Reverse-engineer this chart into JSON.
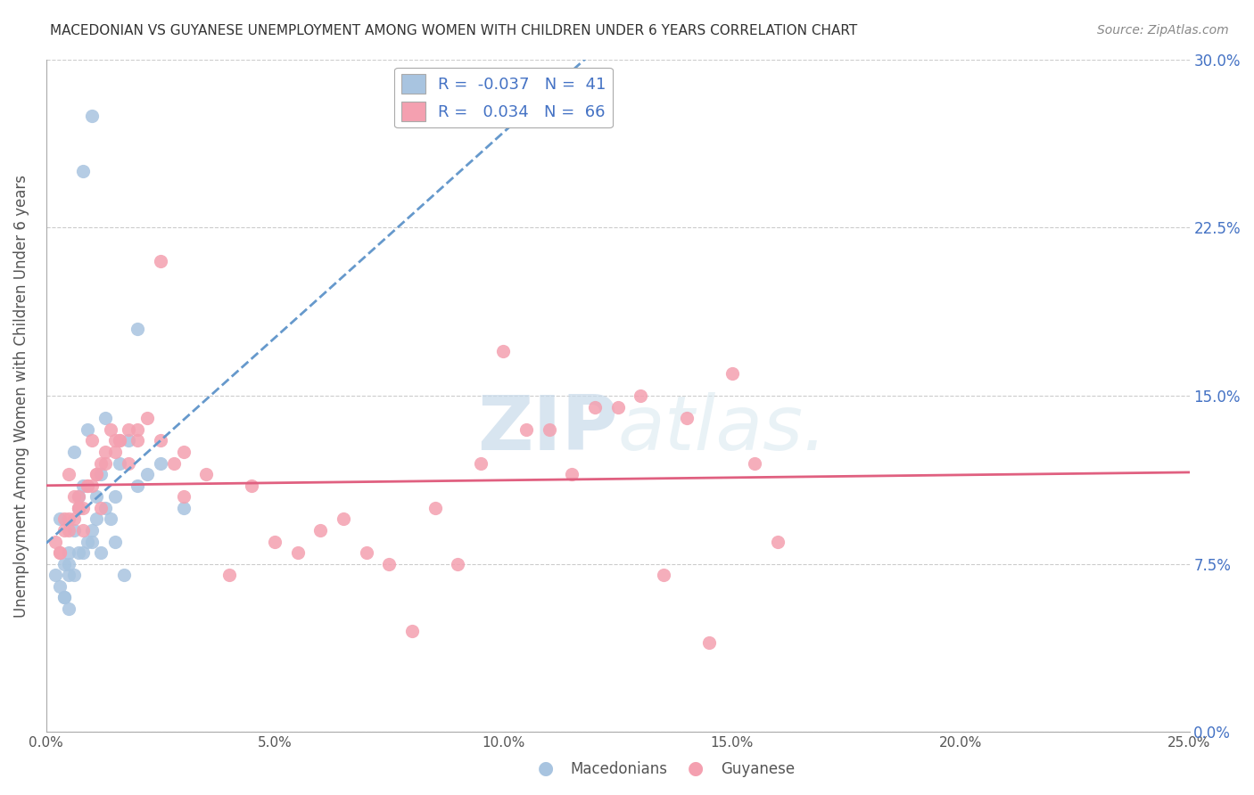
{
  "title": "MACEDONIAN VS GUYANESE UNEMPLOYMENT AMONG WOMEN WITH CHILDREN UNDER 6 YEARS CORRELATION CHART",
  "source": "Source: ZipAtlas.com",
  "ylabel": "Unemployment Among Women with Children Under 6 years",
  "xlabel_vals": [
    0.0,
    5.0,
    10.0,
    15.0,
    20.0,
    25.0
  ],
  "ylabel_vals": [
    0.0,
    7.5,
    15.0,
    22.5,
    30.0
  ],
  "xlim": [
    0,
    25
  ],
  "ylim": [
    0,
    30
  ],
  "legend_macedonian": "Macedonians",
  "legend_guyanese": "Guyanese",
  "r_macedonian": "-0.037",
  "n_macedonian": "41",
  "r_guyanese": "0.034",
  "n_guyanese": "66",
  "color_macedonian": "#a8c4e0",
  "color_guyanese": "#f4a0b0",
  "color_line_macedonian": "#6699cc",
  "color_line_guyanese": "#e06080",
  "watermark_zip": "ZIP",
  "watermark_atlas": "atlas.",
  "macedonian_x": [
    0.5,
    1.0,
    0.8,
    1.2,
    0.3,
    0.7,
    1.5,
    2.0,
    0.4,
    0.6,
    0.9,
    1.1,
    1.3,
    0.2,
    0.5,
    1.8,
    2.5,
    3.0,
    0.8,
    0.6,
    1.0,
    0.4,
    0.7,
    1.2,
    1.4,
    1.6,
    0.3,
    0.5,
    0.8,
    1.0,
    2.0,
    1.5,
    0.9,
    0.6,
    0.4,
    1.1,
    0.7,
    1.3,
    0.5,
    2.2,
    1.7
  ],
  "macedonian_y": [
    7.0,
    27.5,
    25.0,
    8.0,
    9.5,
    10.0,
    8.5,
    18.0,
    6.0,
    12.5,
    13.5,
    10.5,
    14.0,
    7.0,
    8.0,
    13.0,
    12.0,
    10.0,
    11.0,
    9.0,
    8.5,
    7.5,
    10.5,
    11.5,
    9.5,
    12.0,
    6.5,
    7.5,
    8.0,
    9.0,
    11.0,
    10.5,
    8.5,
    7.0,
    6.0,
    9.5,
    8.0,
    10.0,
    5.5,
    11.5,
    7.0
  ],
  "guyanese_x": [
    0.3,
    0.8,
    1.2,
    1.8,
    0.5,
    1.0,
    2.0,
    1.5,
    0.6,
    0.9,
    1.3,
    0.4,
    0.7,
    1.1,
    2.5,
    1.6,
    0.2,
    0.8,
    3.0,
    1.4,
    2.2,
    0.5,
    1.0,
    0.7,
    1.8,
    0.3,
    1.2,
    2.8,
    0.6,
    1.5,
    0.9,
    0.4,
    1.1,
    2.0,
    0.7,
    1.3,
    3.5,
    1.6,
    0.5,
    10.0,
    15.0,
    4.0,
    5.0,
    6.0,
    7.0,
    8.0,
    9.0,
    11.0,
    12.0,
    13.0,
    14.0,
    16.0,
    2.5,
    3.0,
    4.5,
    5.5,
    6.5,
    7.5,
    8.5,
    9.5,
    10.5,
    11.5,
    12.5,
    13.5,
    14.5,
    15.5
  ],
  "guyanese_y": [
    8.0,
    9.0,
    10.0,
    12.0,
    11.5,
    13.0,
    13.5,
    12.5,
    10.5,
    11.0,
    12.0,
    9.5,
    10.5,
    11.5,
    21.0,
    13.0,
    8.5,
    10.0,
    12.5,
    13.5,
    14.0,
    9.0,
    11.0,
    10.0,
    13.5,
    8.0,
    12.0,
    12.0,
    9.5,
    13.0,
    11.0,
    9.0,
    11.5,
    13.0,
    10.0,
    12.5,
    11.5,
    13.0,
    9.5,
    17.0,
    16.0,
    7.0,
    8.5,
    9.0,
    8.0,
    4.5,
    7.5,
    13.5,
    14.5,
    15.0,
    14.0,
    8.5,
    13.0,
    10.5,
    11.0,
    8.0,
    9.5,
    7.5,
    10.0,
    12.0,
    13.5,
    11.5,
    14.5,
    7.0,
    4.0,
    12.0
  ]
}
